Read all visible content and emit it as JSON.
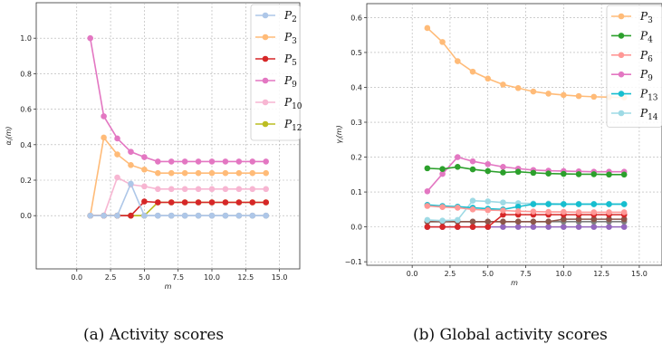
{
  "captions": {
    "a": "(a) Activity scores",
    "b": "(b) Global activity scores"
  },
  "chart_data": [
    {
      "type": "line",
      "xlabel": "m",
      "ylabel": "α_i(m)",
      "xlim": [
        -3,
        16.5
      ],
      "ylim": [
        -0.3,
        1.2
      ],
      "xticks": [
        "0.0",
        "2.5",
        "5.0",
        "7.5",
        "10.0",
        "12.5",
        "15.0"
      ],
      "xtick_values": [
        0,
        2.5,
        5,
        7.5,
        10,
        12.5,
        15
      ],
      "yticks": [
        "0.0",
        "0.2",
        "0.4",
        "0.6",
        "0.8",
        "1.0"
      ],
      "ytick_values": [
        0,
        0.2,
        0.4,
        0.6,
        0.8,
        1.0
      ],
      "grid": true,
      "legend_position": "top-right",
      "x": [
        1,
        2,
        3,
        4,
        5,
        6,
        7,
        8,
        9,
        10,
        11,
        12,
        13,
        14
      ],
      "series": [
        {
          "name": "P",
          "sub": "2",
          "color": "#aec7e8",
          "values": [
            0,
            0,
            0,
            0.18,
            0,
            0,
            0,
            0,
            0,
            0,
            0,
            0,
            0,
            0
          ]
        },
        {
          "name": "P",
          "sub": "3",
          "color": "#ffbb78",
          "values": [
            0,
            0.44,
            0.345,
            0.285,
            0.26,
            0.24,
            0.24,
            0.24,
            0.24,
            0.24,
            0.24,
            0.24,
            0.24,
            0.24
          ]
        },
        {
          "name": "P",
          "sub": "5",
          "color": "#d62728",
          "values": [
            0,
            0,
            0,
            0,
            0.08,
            0.075,
            0.075,
            0.075,
            0.075,
            0.075,
            0.075,
            0.075,
            0.075,
            0.075
          ]
        },
        {
          "name": "P",
          "sub": "9",
          "color": "#e377c2",
          "values": [
            1.0,
            0.56,
            0.435,
            0.36,
            0.33,
            0.305,
            0.305,
            0.305,
            0.305,
            0.305,
            0.305,
            0.305,
            0.305,
            0.305
          ]
        },
        {
          "name": "P",
          "sub": "10",
          "color": "#f7b6d2",
          "values": [
            0,
            0,
            0.215,
            0.175,
            0.165,
            0.15,
            0.15,
            0.15,
            0.15,
            0.15,
            0.15,
            0.15,
            0.15,
            0.15
          ]
        },
        {
          "name": "P",
          "sub": "12",
          "color": "#bcbd22",
          "values": [
            0,
            0,
            0,
            0,
            0,
            0.075,
            0.075,
            0.075,
            0.075,
            0.075,
            0.075,
            0.075,
            0.075,
            0.075
          ]
        },
        {
          "name": "",
          "sub": "",
          "color": "#7f7f7f",
          "values": [
            0,
            0,
            0,
            0,
            0,
            0,
            0,
            0,
            0,
            0,
            0,
            0,
            0,
            0
          ]
        }
      ]
    },
    {
      "type": "line",
      "xlabel": "m",
      "ylabel": "γ_i(m)",
      "xlim": [
        -3,
        16.5
      ],
      "ylim": [
        -0.11,
        0.64
      ],
      "xticks": [
        "0.0",
        "2.5",
        "5.0",
        "7.5",
        "10.0",
        "12.5",
        "15.0"
      ],
      "xtick_values": [
        0,
        2.5,
        5,
        7.5,
        10,
        12.5,
        15
      ],
      "yticks": [
        "−0.1",
        "0.0",
        "0.1",
        "0.2",
        "0.3",
        "0.4",
        "0.5",
        "0.6"
      ],
      "ytick_values": [
        -0.1,
        0,
        0.1,
        0.2,
        0.3,
        0.4,
        0.5,
        0.6
      ],
      "grid": true,
      "legend_position": "top-right",
      "x": [
        1,
        2,
        3,
        4,
        5,
        6,
        7,
        8,
        9,
        10,
        11,
        12,
        13,
        14
      ],
      "series": [
        {
          "name": "P",
          "sub": "3",
          "color": "#ffbb78",
          "values": [
            0.57,
            0.53,
            0.475,
            0.445,
            0.425,
            0.408,
            0.398,
            0.388,
            0.382,
            0.378,
            0.375,
            0.373,
            0.372,
            0.371
          ]
        },
        {
          "name": "P",
          "sub": "4",
          "color": "#2ca02c",
          "values": [
            0.168,
            0.166,
            0.172,
            0.165,
            0.16,
            0.156,
            0.158,
            0.155,
            0.153,
            0.152,
            0.151,
            0.151,
            0.15,
            0.15
          ]
        },
        {
          "name": "P",
          "sub": "6",
          "color": "#ff9896",
          "values": [
            0.06,
            0.057,
            0.055,
            0.05,
            0.048,
            0.047,
            0.045,
            0.044,
            0.043,
            0.043,
            0.042,
            0.042,
            0.042,
            0.042
          ]
        },
        {
          "name": "P",
          "sub": "9",
          "color": "#e377c2",
          "values": [
            0.102,
            0.152,
            0.2,
            0.188,
            0.18,
            0.172,
            0.167,
            0.163,
            0.161,
            0.16,
            0.159,
            0.158,
            0.158,
            0.158
          ]
        },
        {
          "name": "P",
          "sub": "13",
          "color": "#17becf",
          "values": [
            0.063,
            0.06,
            0.058,
            0.055,
            0.052,
            0.05,
            0.058,
            0.065,
            0.065,
            0.065,
            0.065,
            0.065,
            0.065,
            0.065
          ]
        },
        {
          "name": "P",
          "sub": "14",
          "color": "#9edae5",
          "values": [
            0.02,
            0.018,
            0.02,
            0.075,
            0.073,
            0.07,
            0.068,
            0.067,
            0.067,
            0.066,
            0.066,
            0.066,
            0.066,
            0.066
          ]
        },
        {
          "name": "",
          "sub": "",
          "color": "#d62728",
          "values": [
            0,
            0,
            0,
            0,
            0,
            0.035,
            0.035,
            0.035,
            0.035,
            0.035,
            0.035,
            0.035,
            0.035,
            0.035
          ]
        },
        {
          "name": "",
          "sub": "",
          "color": "#8c564b",
          "values": [
            0.015,
            0.015,
            0.015,
            0.015,
            0.015,
            0.015,
            0.015,
            0.015,
            0.015,
            0.022,
            0.022,
            0.022,
            0.022,
            0.022
          ]
        },
        {
          "name": "",
          "sub": "",
          "color": "#7f7f7f",
          "values": [
            0.015,
            0.015,
            0.015,
            0.015,
            0.015,
            0.015,
            0.015,
            0.015,
            0.015,
            0.015,
            0.015,
            0.015,
            0.015,
            0.015
          ]
        },
        {
          "name": "",
          "sub": "",
          "color": "#9467bd",
          "values": [
            0,
            0,
            0,
            0,
            0,
            0,
            0,
            0,
            0,
            0,
            0,
            0,
            0,
            0
          ]
        }
      ]
    }
  ]
}
